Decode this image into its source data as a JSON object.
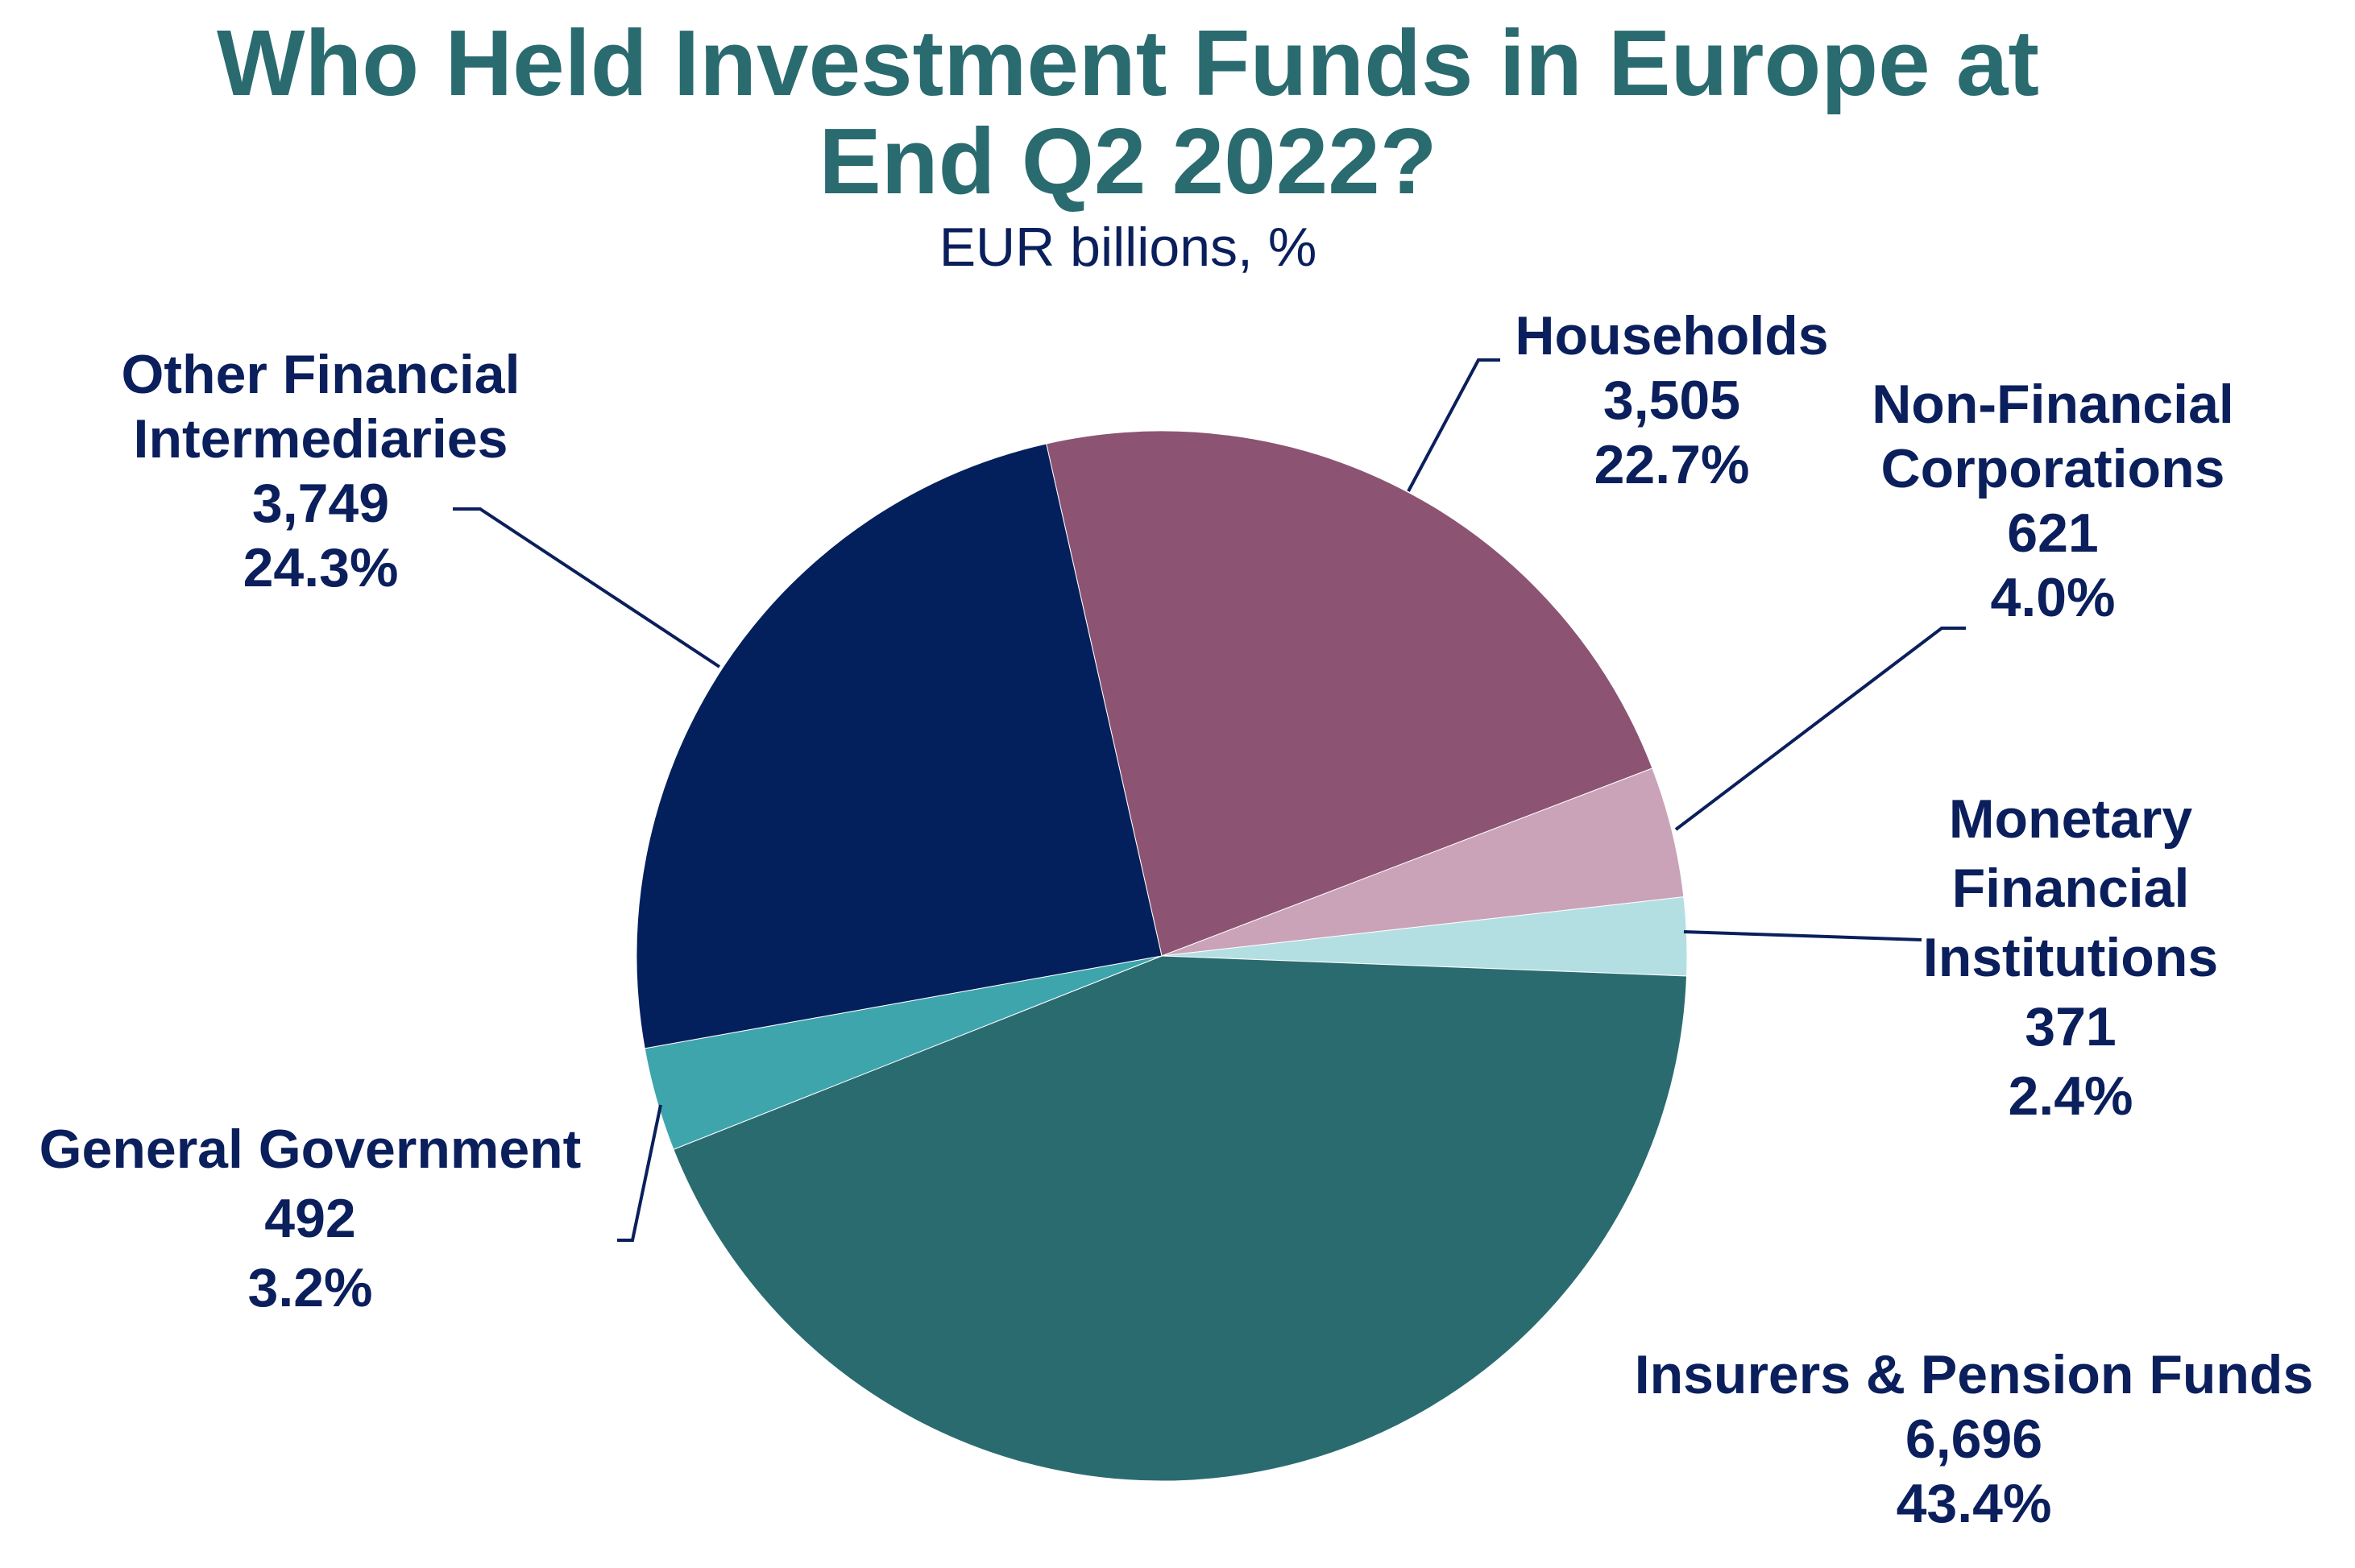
{
  "chart_data": {
    "type": "pie",
    "title_lines": [
      "Who Held Investment Funds in Europe at",
      "End Q2 2022?"
    ],
    "subtitle": "EUR billions, %",
    "colors": {
      "title": "#2a6b70",
      "labels": "#0a1f5c",
      "leader": "#0a1f5c"
    },
    "slices": [
      {
        "name": "Households",
        "name_lines": [
          "Households"
        ],
        "value": 3505,
        "value_label": "3,505",
        "percent": 22.7,
        "percent_label": "22.7%",
        "color": "#8c5472"
      },
      {
        "name": "Non-Financial Corporations",
        "name_lines": [
          "Non-Financial",
          "Corporations"
        ],
        "value": 621,
        "value_label": "621",
        "percent": 4.0,
        "percent_label": "4.0%",
        "color": "#caa3b8"
      },
      {
        "name": "Monetary Financial Institutions",
        "name_lines": [
          "Monetary",
          "Financial",
          "Institutions"
        ],
        "value": 371,
        "value_label": "371",
        "percent": 2.4,
        "percent_label": "2.4%",
        "color": "#b3dfe3"
      },
      {
        "name": "Insurers & Pension Funds",
        "name_lines": [
          "Insurers & Pension Funds"
        ],
        "value": 6696,
        "value_label": "6,696",
        "percent": 43.4,
        "percent_label": "43.4%",
        "color": "#2a6b70"
      },
      {
        "name": "General Government",
        "name_lines": [
          "General Government"
        ],
        "value": 492,
        "value_label": "492",
        "percent": 3.2,
        "percent_label": "3.2%",
        "color": "#3ea5ad"
      },
      {
        "name": "Other Financial Intermediaries",
        "name_lines": [
          "Other Financial",
          "Intermediaries"
        ],
        "value": 3749,
        "value_label": "3,749",
        "percent": 24.3,
        "percent_label": "24.3%",
        "color": "#03205c"
      }
    ]
  }
}
